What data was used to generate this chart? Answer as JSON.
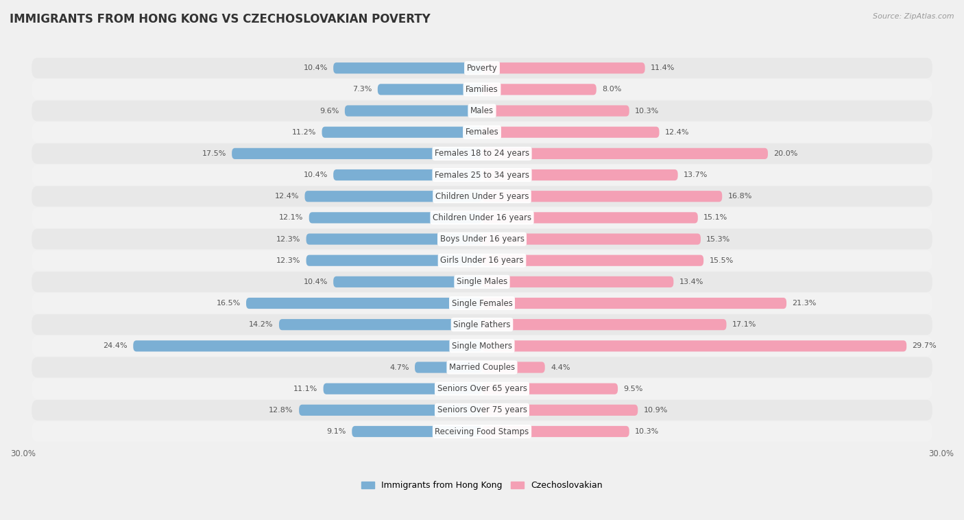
{
  "title": "IMMIGRANTS FROM HONG KONG VS CZECHOSLOVAKIAN POVERTY",
  "source": "Source: ZipAtlas.com",
  "categories": [
    "Poverty",
    "Families",
    "Males",
    "Females",
    "Females 18 to 24 years",
    "Females 25 to 34 years",
    "Children Under 5 years",
    "Children Under 16 years",
    "Boys Under 16 years",
    "Girls Under 16 years",
    "Single Males",
    "Single Females",
    "Single Fathers",
    "Single Mothers",
    "Married Couples",
    "Seniors Over 65 years",
    "Seniors Over 75 years",
    "Receiving Food Stamps"
  ],
  "hong_kong_values": [
    10.4,
    7.3,
    9.6,
    11.2,
    17.5,
    10.4,
    12.4,
    12.1,
    12.3,
    12.3,
    10.4,
    16.5,
    14.2,
    24.4,
    4.7,
    11.1,
    12.8,
    9.1
  ],
  "czechoslovakian_values": [
    11.4,
    8.0,
    10.3,
    12.4,
    20.0,
    13.7,
    16.8,
    15.1,
    15.3,
    15.5,
    13.4,
    21.3,
    17.1,
    29.7,
    4.4,
    9.5,
    10.9,
    10.3
  ],
  "hk_color": "#7bafd4",
  "cz_color": "#f4a0b5",
  "max_val": 30.0,
  "bg_color": "#f0f0f0",
  "row_color_odd": "#e8e8e8",
  "row_color_even": "#f8f8f8",
  "title_fontsize": 12,
  "label_fontsize": 8.5,
  "value_fontsize": 8,
  "legend_fontsize": 9,
  "source_fontsize": 8
}
